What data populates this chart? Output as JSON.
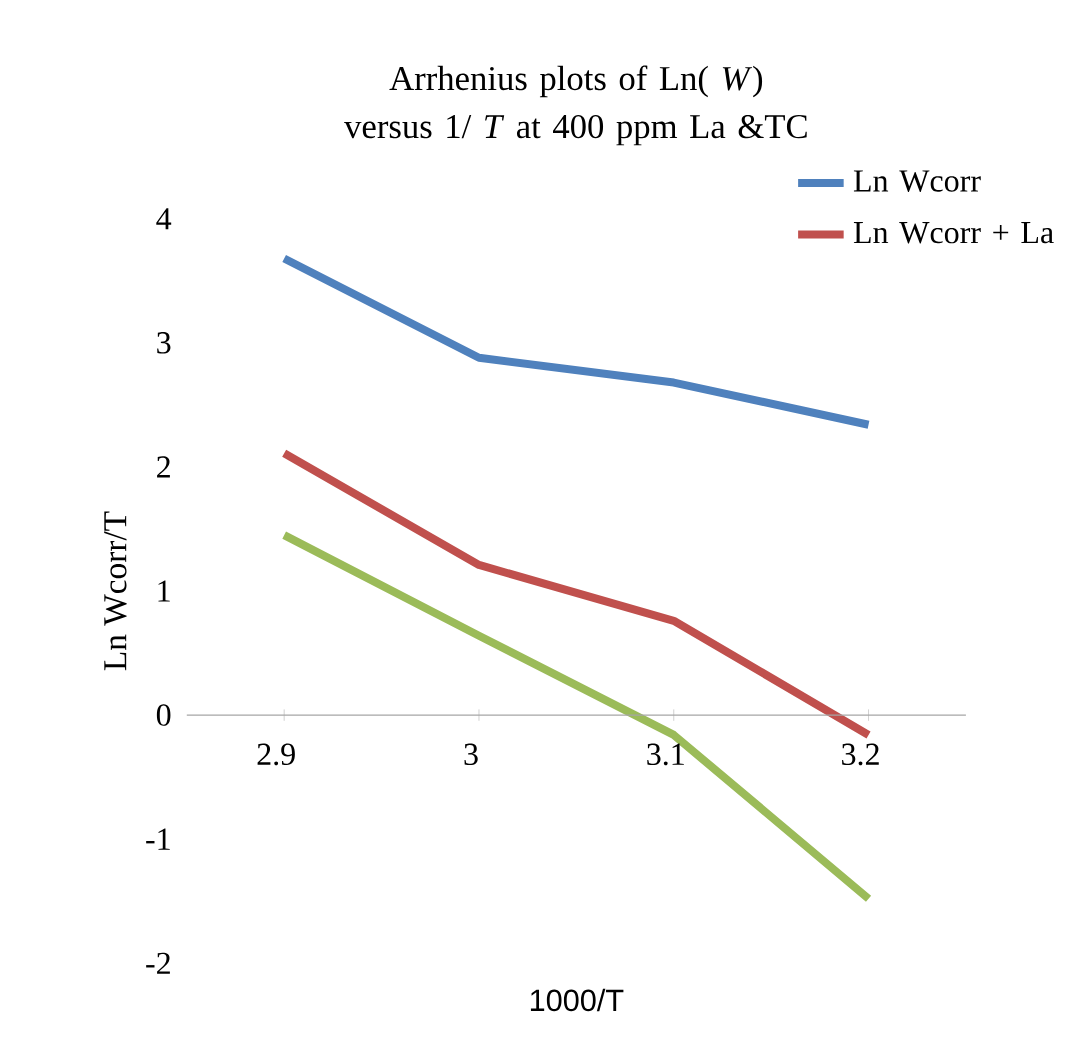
{
  "chart_data": {
    "type": "line",
    "title": "Arrhenius plots of Ln( *W*) versus 1/ *T* at 400 ppm La &TC",
    "xlabel": "1000/T",
    "ylabel": "Ln Wcorr/T",
    "categories": [
      "2.9",
      "3",
      "3.1",
      "3.2"
    ],
    "series": [
      {
        "name": "Ln Wcorr",
        "color": "#4f81bd",
        "values": [
          3.68,
          2.88,
          2.68,
          2.34
        ]
      },
      {
        "name": "Ln Wcorr + La",
        "color": "#c0504d",
        "values": [
          2.11,
          1.21,
          0.76,
          -0.16
        ]
      },
      {
        "color": "#9bbb59",
        "values": [
          1.45,
          0.64,
          -0.16,
          -1.48
        ]
      }
    ],
    "ylim": [
      -2,
      4
    ],
    "yticks": [
      -2,
      -1,
      0,
      1,
      2,
      3,
      4
    ],
    "legend": "top right"
  }
}
